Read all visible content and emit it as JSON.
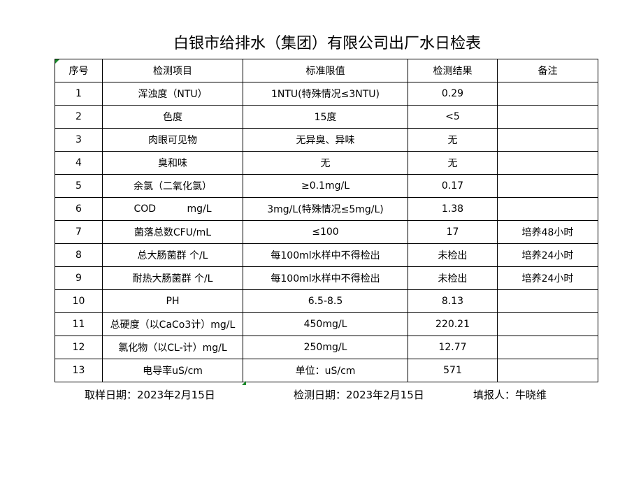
{
  "title": "白银市给排水（集团）有限公司出厂水日检表",
  "headers": [
    "序号",
    "检测项目",
    "标准限值",
    "检测结果",
    "备注"
  ],
  "rows": [
    [
      "1",
      "浑浊度（NTU）",
      "1NTU(特殊情况≤3NTU)",
      "0.29",
      ""
    ],
    [
      "2",
      "色度",
      "15度",
      "<5",
      ""
    ],
    [
      "3",
      "肉眼可见物",
      "无异臭、异味",
      "无",
      ""
    ],
    [
      "4",
      "臭和味",
      "无",
      "无",
      ""
    ],
    [
      "5",
      "余氯（二氧化氯）",
      "≥0.1mg/L",
      "0.17",
      ""
    ],
    [
      "6",
      "COD          mg/L",
      "3mg/L(特殊情况≤5mg/L)",
      "1.38",
      ""
    ],
    [
      "7",
      "菌落总数CFU/mL",
      "≤100",
      "17",
      "培养48小时"
    ],
    [
      "8",
      "总大肠菌群 个/L",
      "每100ml水样中不得检出",
      "未检出",
      "培养24小时"
    ],
    [
      "9",
      "耐热大肠菌群 个/L",
      "每100ml水样中不得检出",
      "未检出",
      "培养24小时"
    ],
    [
      "10",
      "PH",
      "6.5-8.5",
      "8.13",
      ""
    ],
    [
      "11",
      "总硬度（以CaCo3计）mg/L",
      "450mg/L",
      "220.21",
      ""
    ],
    [
      "12",
      "氯化物（以CL-计）mg/L",
      "250mg/L",
      "12.77",
      ""
    ],
    [
      "13",
      "电导率uS/cm",
      "单位：uS/cm",
      "571",
      ""
    ]
  ],
  "footer": {
    "sampling_date": "取样日期：2023年2月15日",
    "test_date": "检测日期：2023年2月15日",
    "reporter": "填报人：牛晓维"
  }
}
